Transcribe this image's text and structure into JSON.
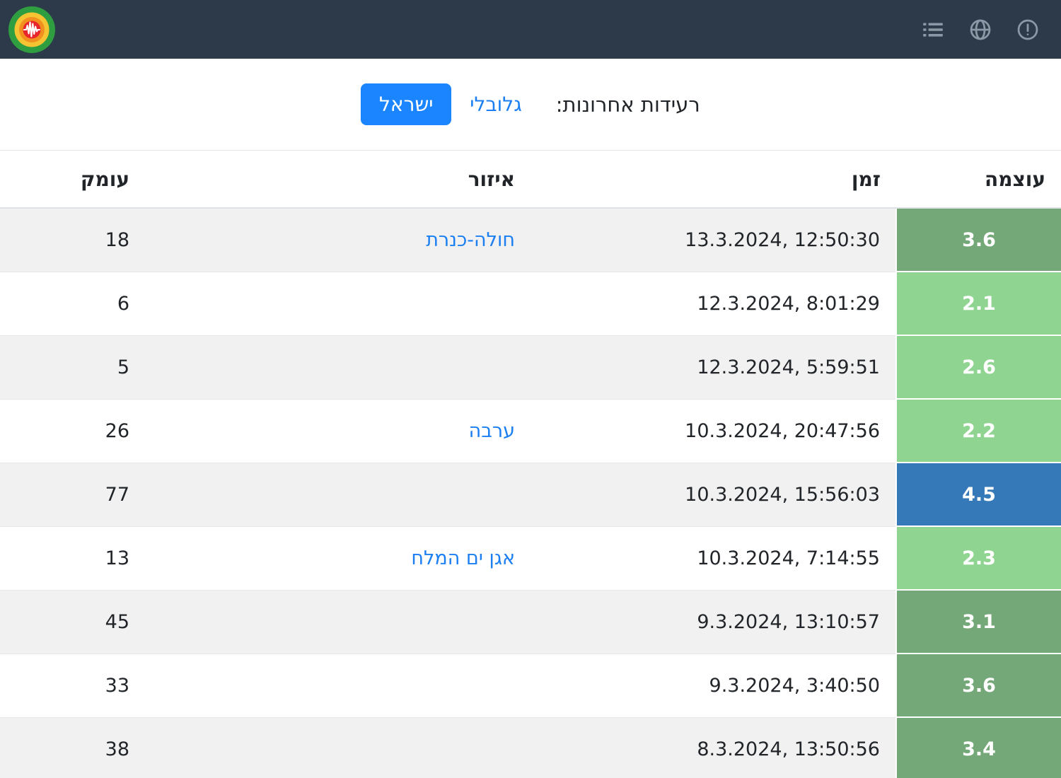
{
  "navbar": {
    "background": "#2c3a49",
    "icon_color": "#8b99a6",
    "logo": "seismograph-logo",
    "icons": [
      "list-icon",
      "globe-icon",
      "alert-icon"
    ]
  },
  "tabs": {
    "label": "רעידות אחרונות:",
    "global_label": "גלובלי",
    "israel_label": "ישראל",
    "active_tab": "ישראל",
    "accent_color": "#1b84ff",
    "link_color": "#1b7ff2"
  },
  "table": {
    "headers": {
      "magnitude": "עוצמה",
      "time": "זמן",
      "region": "איזור",
      "depth": "עומק"
    },
    "magnitude_colors": {
      "light_green": "#90d492",
      "mid_green": "#75a878",
      "blue": "#3679b8"
    },
    "rows": [
      {
        "magnitude": "3.6",
        "color": "#75a878",
        "time": "13.3.2024, 12:50:30",
        "region": "חולה-כנרת",
        "depth": "18"
      },
      {
        "magnitude": "2.1",
        "color": "#90d492",
        "time": "12.3.2024, 8:01:29",
        "region": "",
        "depth": "6"
      },
      {
        "magnitude": "2.6",
        "color": "#90d492",
        "time": "12.3.2024, 5:59:51",
        "region": "",
        "depth": "5"
      },
      {
        "magnitude": "2.2",
        "color": "#90d492",
        "time": "10.3.2024, 20:47:56",
        "region": "ערבה",
        "depth": "26"
      },
      {
        "magnitude": "4.5",
        "color": "#3679b8",
        "time": "10.3.2024, 15:56:03",
        "region": "",
        "depth": "77"
      },
      {
        "magnitude": "2.3",
        "color": "#90d492",
        "time": "10.3.2024, 7:14:55",
        "region": "אגן ים המלח",
        "depth": "13"
      },
      {
        "magnitude": "3.1",
        "color": "#75a878",
        "time": "9.3.2024, 13:10:57",
        "region": "",
        "depth": "45"
      },
      {
        "magnitude": "3.6",
        "color": "#75a878",
        "time": "9.3.2024, 3:40:50",
        "region": "",
        "depth": "33"
      },
      {
        "magnitude": "3.4",
        "color": "#75a878",
        "time": "8.3.2024, 13:50:56",
        "region": "",
        "depth": "38"
      }
    ]
  }
}
